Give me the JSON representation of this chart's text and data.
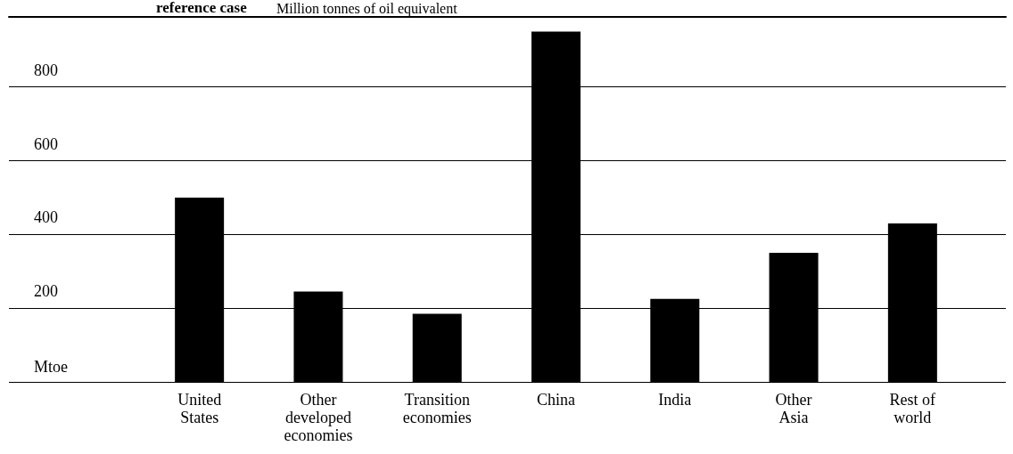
{
  "chart_data": {
    "type": "bar",
    "title": "reference case",
    "subtitle": "Million tonnes of oil equivalent",
    "ylabel": "Mtoe",
    "categories": [
      "United\nStates",
      "Other\ndeveloped\neconomies",
      "Transition\neconomies",
      "China",
      "India",
      "Other\nAsia",
      "Rest of\nworld"
    ],
    "values": [
      500,
      245,
      185,
      950,
      225,
      350,
      430
    ],
    "color": "#000000",
    "ylim": [
      0,
      990
    ],
    "yticks": [
      {
        "value": 0,
        "label": null
      },
      200,
      400,
      600,
      800
    ],
    "grid": "y"
  }
}
